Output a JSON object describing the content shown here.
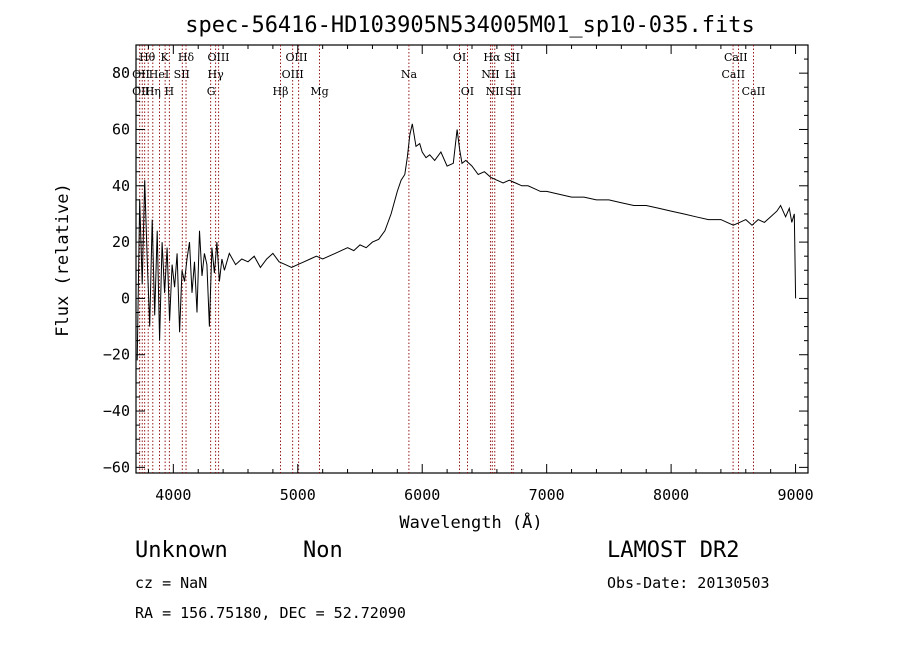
{
  "chart_data": {
    "type": "line",
    "title": "spec-56416-HD103905N534005M01_sp10-035.fits",
    "xlabel": "Wavelength (Å)",
    "ylabel": "Flux (relative)",
    "xlim": [
      3700,
      9100
    ],
    "ylim": [
      -62,
      90
    ],
    "xticks": [
      4000,
      5000,
      6000,
      7000,
      8000,
      9000
    ],
    "yticks": [
      -60,
      -40,
      -20,
      0,
      20,
      40,
      60,
      80
    ],
    "grid": false,
    "legend": "none",
    "line_color": "#000000",
    "marker_color": "#8b0000",
    "series": [
      {
        "x": [
          3710,
          3730,
          3750,
          3770,
          3790,
          3810,
          3830,
          3850,
          3870,
          3890,
          3910,
          3930,
          3950,
          3970,
          3990,
          4010,
          4030,
          4050,
          4070,
          4090,
          4110,
          4130,
          4150,
          4170,
          4190,
          4210,
          4230,
          4250,
          4270,
          4290,
          4310,
          4330,
          4350,
          4370,
          4390,
          4410,
          4450,
          4500,
          4550,
          4600,
          4650,
          4700,
          4750,
          4800,
          4850,
          4900,
          4950,
          5000,
          5050,
          5100,
          5150,
          5200,
          5250,
          5300,
          5350,
          5400,
          5450,
          5500,
          5550,
          5600,
          5650,
          5700,
          5750,
          5800,
          5830,
          5860,
          5880,
          5900,
          5920,
          5950,
          5980,
          6000,
          6030,
          6060,
          6100,
          6150,
          6200,
          6250,
          6280,
          6300,
          6320,
          6350,
          6400,
          6450,
          6500,
          6550,
          6600,
          6650,
          6700,
          6750,
          6800,
          6850,
          6900,
          6950,
          7000,
          7100,
          7200,
          7300,
          7400,
          7500,
          7600,
          7700,
          7800,
          7900,
          8000,
          8100,
          8200,
          8300,
          8400,
          8500,
          8550,
          8600,
          8650,
          8700,
          8750,
          8800,
          8850,
          8880,
          8920,
          8950,
          8970,
          8990,
          9000
        ],
        "y": [
          -22,
          35,
          5,
          42,
          14,
          -10,
          28,
          -6,
          24,
          -15,
          20,
          2,
          18,
          -8,
          12,
          4,
          16,
          -12,
          10,
          6,
          14,
          20,
          2,
          13,
          -5,
          24,
          8,
          16,
          12,
          -10,
          18,
          9,
          20,
          6,
          14,
          10,
          16,
          12,
          14,
          13,
          15,
          11,
          14,
          16,
          13,
          12,
          11,
          12,
          13,
          14,
          15,
          14,
          15,
          16,
          17,
          18,
          17,
          19,
          18,
          20,
          21,
          24,
          30,
          38,
          42,
          44,
          50,
          58,
          62,
          54,
          55,
          52,
          50,
          51,
          49,
          52,
          47,
          48,
          60,
          53,
          48,
          49,
          47,
          44,
          45,
          43,
          42,
          41,
          42,
          41,
          40,
          40,
          39,
          38,
          38,
          37,
          36,
          36,
          35,
          35,
          34,
          33,
          33,
          32,
          31,
          30,
          29,
          28,
          28,
          26,
          27,
          28,
          26,
          28,
          27,
          29,
          31,
          33,
          29,
          32,
          27,
          30,
          0
        ]
      }
    ],
    "lines_at": [
      3730,
      3750,
      3770,
      3798,
      3835,
      3889,
      3934,
      3968,
      4072,
      4102,
      4300,
      4340,
      4364,
      4861,
      4959,
      5007,
      5175,
      5893,
      6300,
      6364,
      6548,
      6563,
      6583,
      6717,
      6731,
      8498,
      8542,
      8662
    ],
    "line_labels": [
      {
        "text": "Hθ",
        "x": 3790,
        "row": 1
      },
      {
        "text": "K",
        "x": 3930,
        "row": 1
      },
      {
        "text": "Hδ",
        "x": 4102,
        "row": 1
      },
      {
        "text": "OIII",
        "x": 4363,
        "row": 1
      },
      {
        "text": "OIII",
        "x": 4990,
        "row": 1
      },
      {
        "text": "OI",
        "x": 6300,
        "row": 1
      },
      {
        "text": "Hα",
        "x": 6560,
        "row": 1
      },
      {
        "text": "SII",
        "x": 6720,
        "row": 1
      },
      {
        "text": "CaII",
        "x": 8520,
        "row": 1
      },
      {
        "text": "OII",
        "x": 3740,
        "row": 2
      },
      {
        "text": "HeI",
        "x": 3885,
        "row": 2
      },
      {
        "text": "SII",
        "x": 4068,
        "row": 2
      },
      {
        "text": "Hγ",
        "x": 4340,
        "row": 2
      },
      {
        "text": "OIII",
        "x": 4959,
        "row": 2
      },
      {
        "text": "Na",
        "x": 5893,
        "row": 2
      },
      {
        "text": "NII",
        "x": 6548,
        "row": 2
      },
      {
        "text": "Li",
        "x": 6708,
        "row": 2
      },
      {
        "text": "CaII",
        "x": 8500,
        "row": 2
      },
      {
        "text": "OII",
        "x": 3740,
        "row": 3
      },
      {
        "text": "Hη",
        "x": 3835,
        "row": 3
      },
      {
        "text": "H",
        "x": 3968,
        "row": 3
      },
      {
        "text": "G",
        "x": 4304,
        "row": 3
      },
      {
        "text": "Hβ",
        "x": 4861,
        "row": 3
      },
      {
        "text": "Mg",
        "x": 5175,
        "row": 3
      },
      {
        "text": "OI",
        "x": 6363,
        "row": 3
      },
      {
        "text": "NII",
        "x": 6583,
        "row": 3
      },
      {
        "text": "SII",
        "x": 6731,
        "row": 3
      },
      {
        "text": "CaII",
        "x": 8662,
        "row": 3
      }
    ]
  },
  "info": {
    "class_text": "Unknown",
    "subclass_text": "Non",
    "survey_text": "LAMOST DR2",
    "cz_text": "cz = NaN",
    "obsdate_text": "Obs-Date: 20130503",
    "coords_text": "RA = 156.75180, DEC =  52.72090"
  }
}
